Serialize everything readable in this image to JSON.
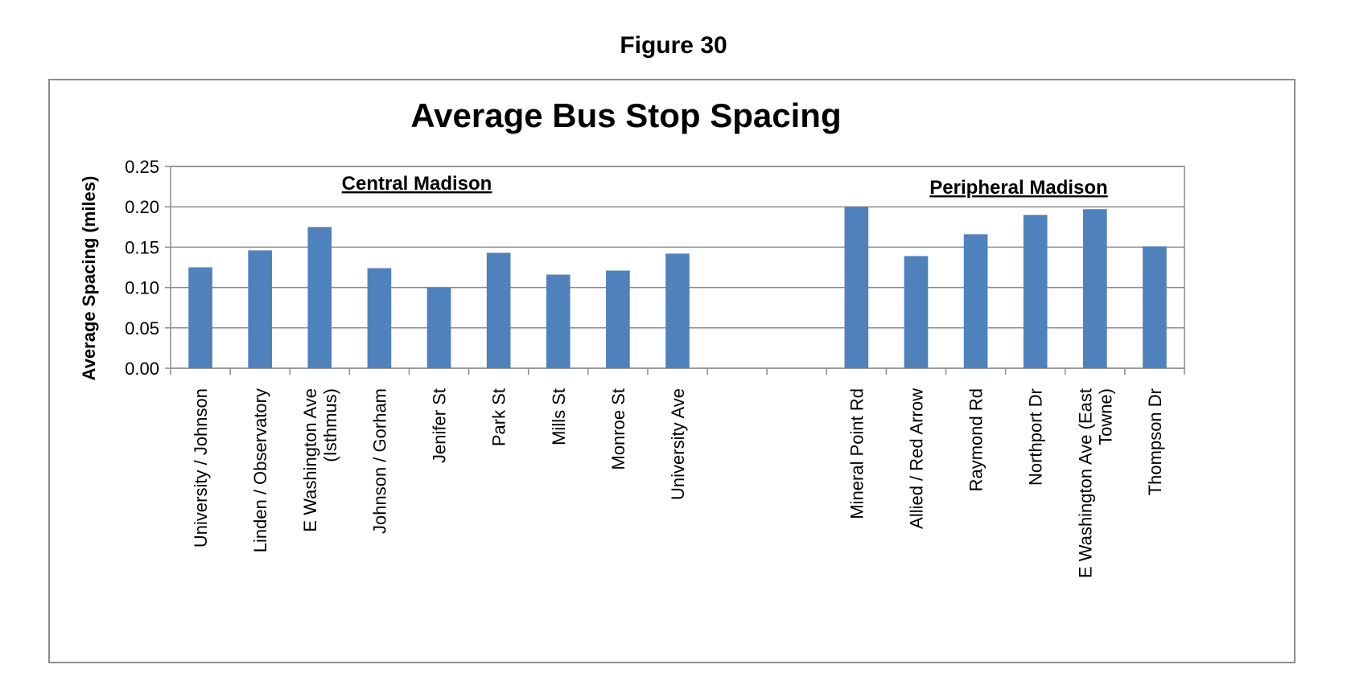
{
  "figure_caption": "Figure 30",
  "chart_data": {
    "type": "bar",
    "title": "Average Bus Stop Spacing",
    "ylabel": "Average Spacing (miles)",
    "xlabel": "",
    "ylim": [
      0,
      0.25
    ],
    "yticks": [
      "0.00",
      "0.05",
      "0.10",
      "0.15",
      "0.20",
      "0.25"
    ],
    "grid": true,
    "categories": [
      "University / Johnson",
      "Linden / Observatory",
      "E Washington Ave (Isthmus)",
      "Johnson / Gorham",
      "Jenifer St",
      "Park St",
      "Mills St",
      "Monroe St",
      "University Ave",
      "",
      "",
      "Mineral Point Rd",
      "Allied / Red Arrow",
      "Raymond Rd",
      "Northport Dr",
      "E Washington Ave (East Towne)",
      "Thompson Dr"
    ],
    "values": [
      0.125,
      0.146,
      0.175,
      0.124,
      0.1,
      0.143,
      0.116,
      0.121,
      0.142,
      null,
      null,
      0.2,
      0.139,
      0.166,
      0.19,
      0.197,
      0.151
    ],
    "bar_color": "#4f81bd",
    "annotations": [
      "Central Madison",
      "Peripheral Madison"
    ]
  }
}
